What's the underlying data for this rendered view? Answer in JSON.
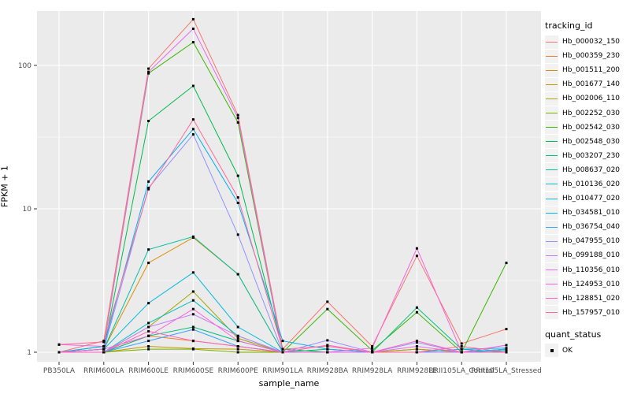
{
  "figure": {
    "background": "#FFFFFF",
    "panel_background": "#EBEBEB",
    "gridline_color": "#FFFFFF",
    "tick_label_color": "#4D4D4D",
    "tick_mark_color": "#333333",
    "point_color": "#000000"
  },
  "chart_data": {
    "type": "line",
    "title": "",
    "xlabel": "sample_name",
    "ylabel": "FPKM + 1",
    "y_scale": "log10",
    "ylim": [
      0.86,
      240
    ],
    "y_ticks": [
      1,
      10,
      100
    ],
    "y_minor_ticks": [
      3.162,
      31.62
    ],
    "grid": "on",
    "point_shape": "square",
    "categories": [
      "PB350LA",
      "RRIM600LA",
      "RRIM600LE",
      "RRIM600SE",
      "RRIM600PE",
      "RRIM901LA",
      "RRIM928BA",
      "RRIM928LA",
      "RRIM928LE",
      "RRII105LA_Control",
      "RRII105LA_Stressed"
    ],
    "legend": {
      "position": "right",
      "color_title": "tracking_id",
      "shape_title": "quant_status",
      "shape_items": [
        {
          "label": "OK"
        }
      ]
    },
    "series": [
      {
        "name": "Hb_000032_150",
        "color": "#F8766D",
        "values": [
          1.0,
          1.2,
          95,
          210,
          45,
          1.05,
          2.25,
          1.1,
          4.7,
          1.15,
          1.45
        ]
      },
      {
        "name": "Hb_000359_230",
        "color": "#EA8331",
        "values": [
          1.0,
          1.0,
          1.3,
          1.2,
          1.1,
          1.0,
          1.0,
          1.0,
          1.05,
          1.0,
          1.0
        ]
      },
      {
        "name": "Hb_001511_200",
        "color": "#D89000",
        "values": [
          1.0,
          1.05,
          4.2,
          6.3,
          3.5,
          1.0,
          1.0,
          1.0,
          1.0,
          1.0,
          1.05
        ]
      },
      {
        "name": "Hb_001677_140",
        "color": "#C09B00",
        "values": [
          1.0,
          1.0,
          1.1,
          1.06,
          1.05,
          1.0,
          1.0,
          1.0,
          1.0,
          1.0,
          1.0
        ]
      },
      {
        "name": "Hb_002006_110",
        "color": "#A3A500",
        "values": [
          1.0,
          1.0,
          1.5,
          2.65,
          1.25,
          1.0,
          1.0,
          1.0,
          1.05,
          1.0,
          1.0
        ]
      },
      {
        "name": "Hb_002252_030",
        "color": "#7CAE00",
        "values": [
          1.0,
          1.0,
          1.05,
          1.05,
          1.0,
          1.0,
          1.0,
          1.0,
          1.0,
          1.0,
          1.0
        ]
      },
      {
        "name": "Hb_002542_030",
        "color": "#39B600",
        "values": [
          1.0,
          1.1,
          88,
          145,
          40,
          1.0,
          2.0,
          1.03,
          1.9,
          1.0,
          4.2
        ]
      },
      {
        "name": "Hb_002548_030",
        "color": "#00BB4E",
        "values": [
          1.0,
          1.05,
          41,
          72,
          17,
          1.05,
          1.0,
          1.0,
          1.0,
          1.0,
          1.0
        ]
      },
      {
        "name": "Hb_003207_230",
        "color": "#00BF7D",
        "values": [
          1.0,
          1.0,
          1.3,
          1.5,
          1.2,
          1.0,
          1.05,
          1.0,
          2.05,
          1.05,
          1.0
        ]
      },
      {
        "name": "Hb_008637_020",
        "color": "#00C1A3",
        "values": [
          1.0,
          1.05,
          5.2,
          6.4,
          3.5,
          1.0,
          1.0,
          1.0,
          1.0,
          1.0,
          1.0
        ]
      },
      {
        "name": "Hb_010136_020",
        "color": "#00BFC4",
        "values": [
          1.0,
          1.0,
          1.6,
          2.3,
          1.3,
          1.0,
          1.0,
          1.0,
          1.0,
          1.0,
          1.03
        ]
      },
      {
        "name": "Hb_010477_020",
        "color": "#00BAE0",
        "values": [
          1.0,
          1.05,
          2.2,
          3.6,
          1.5,
          1.0,
          1.0,
          1.0,
          1.0,
          1.0,
          1.05
        ]
      },
      {
        "name": "Hb_034581_010",
        "color": "#00B0F6",
        "values": [
          1.0,
          1.1,
          15.5,
          36,
          11,
          1.2,
          1.05,
          1.0,
          1.0,
          1.05,
          1.07
        ]
      },
      {
        "name": "Hb_036754_040",
        "color": "#35A2FF",
        "values": [
          1.0,
          1.0,
          1.2,
          1.44,
          1.1,
          1.0,
          1.0,
          1.0,
          1.0,
          1.0,
          1.05
        ]
      },
      {
        "name": "Hb_047955_010",
        "color": "#9590FF",
        "values": [
          1.0,
          1.05,
          14,
          33,
          6.6,
          1.0,
          1.21,
          1.0,
          1.17,
          1.0,
          1.0
        ]
      },
      {
        "name": "Hb_099188_010",
        "color": "#C77CFF",
        "values": [
          1.0,
          1.0,
          1.5,
          1.84,
          1.3,
          1.0,
          1.0,
          1.0,
          1.0,
          1.0,
          1.0
        ]
      },
      {
        "name": "Hb_110356_010",
        "color": "#E76BF3",
        "values": [
          1.13,
          1.1,
          90,
          180,
          43,
          1.0,
          1.0,
          1.0,
          1.1,
          1.0,
          1.12
        ]
      },
      {
        "name": "Hb_124953_010",
        "color": "#FA62DB",
        "values": [
          1.0,
          1.05,
          1.3,
          2.0,
          1.2,
          1.0,
          1.0,
          1.07,
          5.3,
          1.0,
          1.12
        ]
      },
      {
        "name": "Hb_128851_020",
        "color": "#FF62BC",
        "values": [
          1.0,
          1.0,
          1.4,
          1.2,
          1.1,
          1.0,
          1.12,
          1.0,
          1.2,
          1.0,
          1.0
        ]
      },
      {
        "name": "Hb_157957_010",
        "color": "#FF6A98",
        "values": [
          1.13,
          1.18,
          13.7,
          42,
          12,
          1.05,
          1.1,
          1.0,
          1.0,
          1.1,
          1.0
        ]
      }
    ]
  }
}
